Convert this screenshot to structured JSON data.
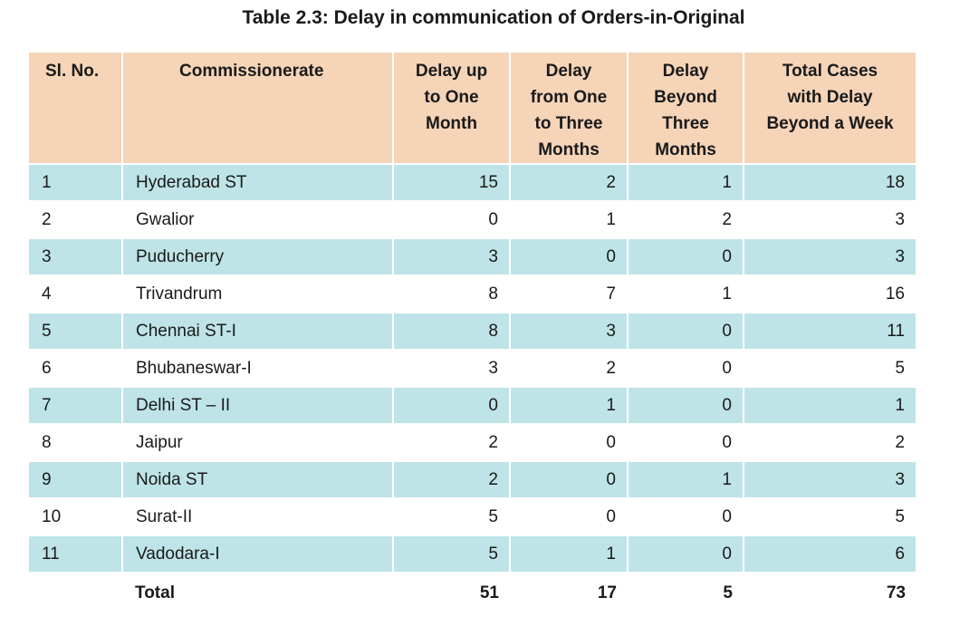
{
  "title": "Table 2.3: Delay in communication of Orders-in-Original",
  "headers": {
    "sl": "Sl. No.",
    "commissionerate": "Commissionerate",
    "one_month": [
      "Delay up",
      "to One",
      "Month"
    ],
    "one_three": [
      "Delay",
      "from One",
      "to Three",
      "Months"
    ],
    "beyond_three": [
      "Delay",
      "Beyond",
      "Three",
      "Months"
    ],
    "total": [
      "Total Cases",
      "with Delay",
      "Beyond a Week"
    ]
  },
  "rows": [
    {
      "sl": "1",
      "name": "Hyderabad ST",
      "one_month": "15",
      "one_three": "2",
      "beyond_three": "1",
      "total": "18"
    },
    {
      "sl": "2",
      "name": "Gwalior",
      "one_month": "0",
      "one_three": "1",
      "beyond_three": "2",
      "total": "3"
    },
    {
      "sl": "3",
      "name": "Puducherry",
      "one_month": "3",
      "one_three": "0",
      "beyond_three": "0",
      "total": "3"
    },
    {
      "sl": "4",
      "name": "Trivandrum",
      "one_month": "8",
      "one_three": "7",
      "beyond_three": "1",
      "total": "16"
    },
    {
      "sl": "5",
      "name": "Chennai ST-I",
      "one_month": "8",
      "one_three": "3",
      "beyond_three": "0",
      "total": "11"
    },
    {
      "sl": "6",
      "name": "Bhubaneswar-I",
      "one_month": "3",
      "one_three": "2",
      "beyond_three": "0",
      "total": "5"
    },
    {
      "sl": "7",
      "name": "Delhi ST – II",
      "one_month": "0",
      "one_three": "1",
      "beyond_three": "0",
      "total": "1"
    },
    {
      "sl": "8",
      "name": "Jaipur",
      "one_month": "2",
      "one_three": "0",
      "beyond_three": "0",
      "total": "2"
    },
    {
      "sl": "9",
      "name": "Noida ST",
      "one_month": "2",
      "one_three": "0",
      "beyond_three": "1",
      "total": "3"
    },
    {
      "sl": "10",
      "name": "Surat-II",
      "one_month": "5",
      "one_three": "0",
      "beyond_three": "0",
      "total": "5"
    },
    {
      "sl": "11",
      "name": "Vadodara-I",
      "one_month": "5",
      "one_three": "1",
      "beyond_three": "0",
      "total": "6"
    }
  ],
  "total_row": {
    "label": "Total",
    "one_month": "51",
    "one_three": "17",
    "beyond_three": "5",
    "total": "73"
  },
  "colors": {
    "header_bg": "#f5d4b8",
    "row_alt_bg": "#bee4e7",
    "row_bg": "#ffffff"
  }
}
